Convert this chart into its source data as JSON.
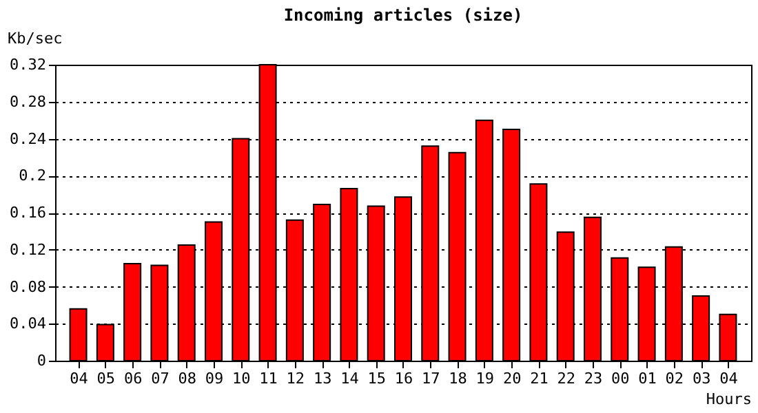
{
  "chart_data": {
    "type": "bar",
    "title": "Incoming articles (size)",
    "ylabel": "Kb/sec",
    "xlabel": "Hours",
    "categories": [
      "04",
      "05",
      "06",
      "07",
      "08",
      "09",
      "10",
      "11",
      "12",
      "13",
      "14",
      "15",
      "16",
      "17",
      "18",
      "19",
      "20",
      "21",
      "22",
      "23",
      "00",
      "01",
      "02",
      "03",
      "04"
    ],
    "values": [
      0.056,
      0.039,
      0.105,
      0.103,
      0.125,
      0.15,
      0.24,
      0.32,
      0.152,
      0.169,
      0.186,
      0.167,
      0.177,
      0.232,
      0.225,
      0.26,
      0.25,
      0.191,
      0.139,
      0.155,
      0.111,
      0.101,
      0.123,
      0.07,
      0.05
    ],
    "color": "#ff0000",
    "ylim": [
      0,
      0.32
    ],
    "yticks": [
      0,
      0.04,
      0.08,
      0.12,
      0.16,
      0.2,
      0.24,
      0.28,
      0.32
    ],
    "grid": "y",
    "line_style": "dotted"
  }
}
